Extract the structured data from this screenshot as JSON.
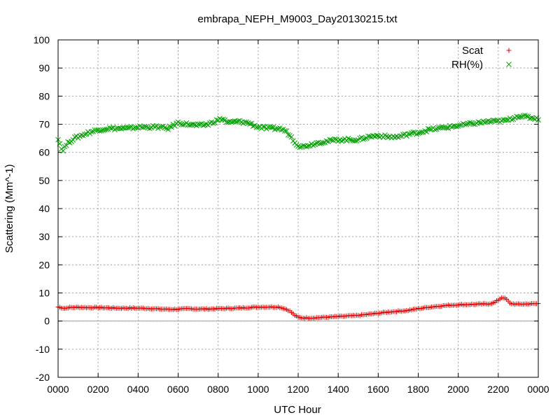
{
  "chart_data": {
    "type": "scatter",
    "title": "embrapa_NEPH_M9003_Day20130215.txt",
    "xlabel": "UTC Hour",
    "ylabel": "Scattering (Mm^-1)",
    "xlim": [
      0,
      24
    ],
    "ylim": [
      -20,
      100
    ],
    "grid": true,
    "legend_position": "top-right",
    "x_ticks": [
      {
        "value": 0,
        "label": "0000"
      },
      {
        "value": 2,
        "label": "0200"
      },
      {
        "value": 4,
        "label": "0400"
      },
      {
        "value": 6,
        "label": "0600"
      },
      {
        "value": 8,
        "label": "0800"
      },
      {
        "value": 10,
        "label": "1000"
      },
      {
        "value": 12,
        "label": "1200"
      },
      {
        "value": 14,
        "label": "1400"
      },
      {
        "value": 16,
        "label": "1600"
      },
      {
        "value": 18,
        "label": "1800"
      },
      {
        "value": 20,
        "label": "2000"
      },
      {
        "value": 22,
        "label": "2200"
      },
      {
        "value": 24,
        "label": "0000"
      }
    ],
    "y_ticks": [
      {
        "value": -20,
        "label": "-20"
      },
      {
        "value": -10,
        "label": "-10"
      },
      {
        "value": 0,
        "label": "0"
      },
      {
        "value": 10,
        "label": "10"
      },
      {
        "value": 20,
        "label": "20"
      },
      {
        "value": 30,
        "label": "30"
      },
      {
        "value": 40,
        "label": "40"
      },
      {
        "value": 50,
        "label": "50"
      },
      {
        "value": 60,
        "label": "60"
      },
      {
        "value": 70,
        "label": "70"
      },
      {
        "value": 80,
        "label": "80"
      },
      {
        "value": 90,
        "label": "90"
      },
      {
        "value": 100,
        "label": "100"
      }
    ],
    "series": [
      {
        "name": "Scat",
        "marker": "plus",
        "color": "#e00000",
        "x": [
          0.0,
          0.35,
          0.5,
          1.0,
          1.5,
          2.0,
          2.5,
          3.0,
          3.5,
          4.0,
          4.5,
          5.0,
          5.5,
          6.0,
          6.5,
          7.0,
          7.5,
          8.0,
          8.5,
          9.0,
          9.5,
          10.0,
          10.5,
          11.0,
          11.3,
          11.6,
          11.8,
          12.0,
          12.3,
          12.6,
          13.0,
          13.5,
          14.0,
          14.5,
          15.0,
          15.5,
          16.0,
          16.5,
          17.0,
          17.5,
          18.0,
          18.5,
          19.0,
          19.5,
          20.0,
          20.5,
          21.0,
          21.5,
          21.8,
          22.0,
          22.2,
          22.4,
          22.6,
          23.0,
          23.5,
          24.0
        ],
        "y": [
          5.0,
          4.5,
          4.8,
          4.9,
          4.8,
          4.8,
          4.7,
          4.6,
          4.6,
          4.6,
          4.5,
          4.3,
          4.2,
          4.2,
          4.4,
          4.3,
          4.3,
          4.4,
          4.5,
          4.6,
          4.8,
          5.0,
          5.0,
          5.0,
          4.5,
          3.5,
          2.2,
          1.3,
          1.1,
          1.1,
          1.2,
          1.4,
          1.6,
          1.8,
          2.0,
          2.4,
          2.8,
          3.2,
          3.5,
          3.8,
          4.4,
          4.9,
          5.3,
          5.6,
          5.8,
          5.9,
          6.0,
          6.1,
          6.5,
          7.5,
          8.5,
          7.8,
          6.2,
          6.0,
          6.1,
          6.2
        ]
      },
      {
        "name": "RH(%)",
        "marker": "x",
        "color": "#00a000",
        "x": [
          0.0,
          0.2,
          0.4,
          0.6,
          0.8,
          1.0,
          1.5,
          2.0,
          2.5,
          3.0,
          3.5,
          4.0,
          4.5,
          5.0,
          5.5,
          6.0,
          6.5,
          7.0,
          7.5,
          8.0,
          8.2,
          8.5,
          9.0,
          9.5,
          10.0,
          10.5,
          11.0,
          11.3,
          11.6,
          11.8,
          12.0,
          12.2,
          12.5,
          13.0,
          13.5,
          14.0,
          14.5,
          15.0,
          15.5,
          16.0,
          16.5,
          17.0,
          17.5,
          18.0,
          18.5,
          19.0,
          19.5,
          20.0,
          20.5,
          21.0,
          21.5,
          22.0,
          22.5,
          23.0,
          23.5,
          24.0
        ],
        "y": [
          65.0,
          60.5,
          62.5,
          64.0,
          65.0,
          65.5,
          67.0,
          68.0,
          68.5,
          68.5,
          68.5,
          69.0,
          69.0,
          69.0,
          68.5,
          70.5,
          70.0,
          69.5,
          70.0,
          71.5,
          72.0,
          70.5,
          71.0,
          70.5,
          69.0,
          68.5,
          68.5,
          68.0,
          66.0,
          64.0,
          62.5,
          62.0,
          62.5,
          63.5,
          64.0,
          64.5,
          64.5,
          64.5,
          65.5,
          66.0,
          65.5,
          65.5,
          66.5,
          67.0,
          68.0,
          68.5,
          69.0,
          69.5,
          70.0,
          70.5,
          71.0,
          71.0,
          71.5,
          73.0,
          72.5,
          72.0
        ]
      }
    ]
  }
}
